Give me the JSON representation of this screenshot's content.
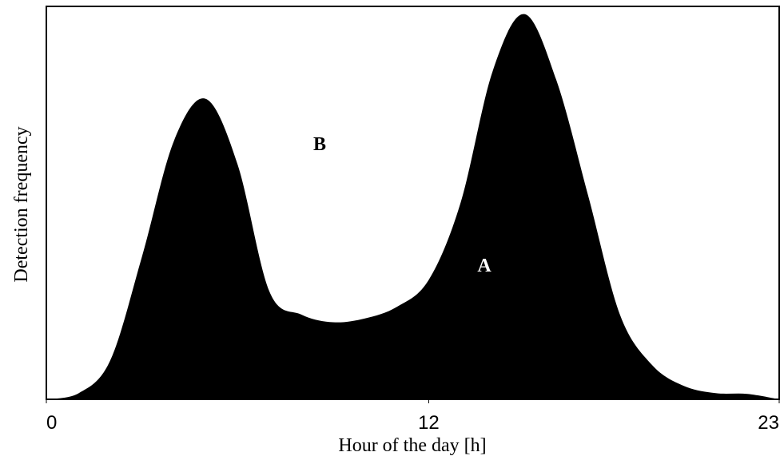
{
  "chart_data": {
    "type": "area",
    "x_label": "Hour of the day [h]",
    "y_label": "Detection frequency",
    "x": [
      0,
      1,
      2,
      3,
      4,
      5,
      6,
      7,
      8,
      9,
      10,
      11,
      12,
      13,
      14,
      15,
      16,
      17,
      18,
      19,
      20,
      21,
      22,
      23
    ],
    "values": [
      0,
      1.5,
      10,
      37,
      67,
      78,
      61,
      28,
      22,
      20,
      21,
      24,
      31,
      51,
      85,
      100,
      83,
      53,
      22,
      9,
      3.5,
      1.6,
      1.4,
      0
    ],
    "color": "#000000",
    "xlim": [
      0,
      23
    ],
    "xticks": [
      0,
      12,
      23
    ],
    "ylim": [
      0,
      102
    ],
    "annotations": [
      "B",
      "A"
    ]
  }
}
